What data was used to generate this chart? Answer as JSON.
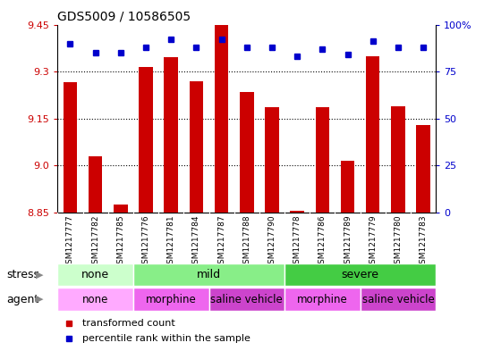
{
  "title": "GDS5009 / 10586505",
  "samples": [
    "GSM1217777",
    "GSM1217782",
    "GSM1217785",
    "GSM1217776",
    "GSM1217781",
    "GSM1217784",
    "GSM1217787",
    "GSM1217788",
    "GSM1217790",
    "GSM1217778",
    "GSM1217786",
    "GSM1217789",
    "GSM1217779",
    "GSM1217780",
    "GSM1217783"
  ],
  "transformed_count": [
    9.265,
    9.03,
    8.875,
    9.315,
    9.345,
    9.27,
    9.46,
    9.235,
    9.185,
    8.855,
    9.185,
    9.015,
    9.35,
    9.19,
    9.13
  ],
  "percentile_rank": [
    90,
    85,
    85,
    88,
    92,
    88,
    92,
    88,
    88,
    83,
    87,
    84,
    91,
    88,
    88
  ],
  "ylim_left": [
    8.85,
    9.45
  ],
  "ylim_right": [
    0,
    100
  ],
  "yticks_left": [
    8.85,
    9.0,
    9.15,
    9.3,
    9.45
  ],
  "yticks_right": [
    0,
    25,
    50,
    75,
    100
  ],
  "bar_color": "#cc0000",
  "dot_color": "#0000cc",
  "stress_groups": [
    {
      "label": "none",
      "start": 0,
      "end": 3,
      "color": "#ccffcc"
    },
    {
      "label": "mild",
      "start": 3,
      "end": 9,
      "color": "#88ee88"
    },
    {
      "label": "severe",
      "start": 9,
      "end": 15,
      "color": "#44cc44"
    }
  ],
  "agent_groups": [
    {
      "label": "none",
      "start": 0,
      "end": 3,
      "color": "#ffaaff"
    },
    {
      "label": "morphine",
      "start": 3,
      "end": 6,
      "color": "#ee66ee"
    },
    {
      "label": "saline vehicle",
      "start": 6,
      "end": 9,
      "color": "#cc44cc"
    },
    {
      "label": "morphine",
      "start": 9,
      "end": 12,
      "color": "#ee66ee"
    },
    {
      "label": "saline vehicle",
      "start": 12,
      "end": 15,
      "color": "#cc44cc"
    }
  ],
  "legend_items": [
    {
      "label": "transformed count",
      "color": "#cc0000"
    },
    {
      "label": "percentile rank within the sample",
      "color": "#0000cc"
    }
  ],
  "bg_color": "#ffffff",
  "tick_bg_color": "#c8c8c8",
  "arrow_color": "#888888"
}
